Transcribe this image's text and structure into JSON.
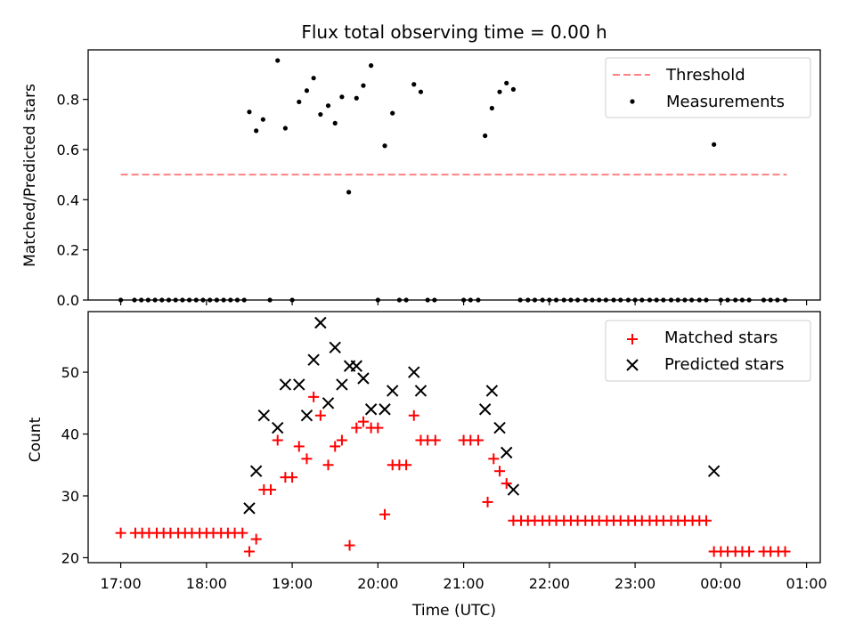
{
  "chart_data": [
    {
      "type": "scatter",
      "title": "Flux total observing time = 0.00 h",
      "ylabel": "Matched/Predicted stars",
      "xlabel": "",
      "xlim": [
        16.62,
        25.16
      ],
      "ylim": [
        0.0,
        0.9975
      ],
      "yticks": [
        0.0,
        0.2,
        0.4,
        0.6,
        0.8
      ],
      "ytick_labels": [
        "0.0",
        "0.2",
        "0.4",
        "0.6",
        "0.8"
      ],
      "legend": [
        "Threshold",
        "Measurements"
      ],
      "legend_position": "top-right",
      "threshold": {
        "name": "Threshold",
        "value": 0.5,
        "x": [
          17.0,
          24.77
        ],
        "color": "#ff8080"
      },
      "measurements": {
        "name": "Measurements",
        "color": "#000000",
        "x": [
          17.0,
          17.16,
          17.24,
          17.32,
          17.4,
          17.48,
          17.56,
          17.64,
          17.72,
          17.8,
          17.88,
          17.96,
          18.04,
          18.12,
          18.2,
          18.28,
          18.36,
          18.44,
          18.5,
          18.58,
          18.66,
          18.74,
          18.83,
          18.92,
          19.0,
          19.08,
          19.17,
          19.25,
          19.33,
          19.42,
          19.5,
          19.58,
          19.66,
          19.75,
          19.83,
          19.92,
          20.0,
          20.08,
          20.17,
          20.25,
          20.33,
          20.42,
          20.5,
          20.58,
          20.66,
          21.0,
          21.08,
          21.17,
          21.25,
          21.33,
          21.42,
          21.5,
          21.58,
          21.66,
          21.75,
          21.83,
          21.92,
          22.0,
          22.08,
          22.17,
          22.25,
          22.33,
          22.42,
          22.5,
          22.58,
          22.66,
          22.75,
          22.83,
          22.92,
          23.0,
          23.08,
          23.17,
          23.25,
          23.33,
          23.42,
          23.5,
          23.58,
          23.66,
          23.75,
          23.83,
          23.92,
          24.0,
          24.08,
          24.17,
          24.25,
          24.33,
          24.5,
          24.58,
          24.66,
          24.75
        ],
        "y": [
          0.0,
          0.0,
          0.0,
          0.0,
          0.0,
          0.0,
          0.0,
          0.0,
          0.0,
          0.0,
          0.0,
          0.0,
          0.0,
          0.0,
          0.0,
          0.0,
          0.0,
          0.0,
          0.75,
          0.675,
          0.72,
          0.0,
          0.955,
          0.685,
          0.0,
          0.79,
          0.835,
          0.885,
          0.74,
          0.775,
          0.705,
          0.81,
          0.43,
          0.805,
          0.855,
          0.935,
          0.0,
          0.615,
          0.745,
          0.0,
          0.0,
          0.86,
          0.83,
          0.0,
          0.0,
          0.0,
          0.0,
          0.0,
          0.655,
          0.765,
          0.83,
          0.865,
          0.84,
          0.0,
          0.0,
          0.0,
          0.0,
          0.0,
          0.0,
          0.0,
          0.0,
          0.0,
          0.0,
          0.0,
          0.0,
          0.0,
          0.0,
          0.0,
          0.0,
          0.0,
          0.0,
          0.0,
          0.0,
          0.0,
          0.0,
          0.0,
          0.0,
          0.0,
          0.0,
          0.0,
          0.62,
          0.0,
          0.0,
          0.0,
          0.0,
          0.0,
          0.0,
          0.0,
          0.0,
          0.0
        ]
      }
    },
    {
      "type": "scatter",
      "title": "",
      "ylabel": "Count",
      "xlabel": "Time (UTC)",
      "xlim": [
        16.62,
        25.16
      ],
      "ylim": [
        19.2,
        59.8
      ],
      "yticks": [
        20,
        30,
        40,
        50
      ],
      "ytick_labels": [
        "20",
        "30",
        "40",
        "50"
      ],
      "xticks": [
        17,
        18,
        19,
        20,
        21,
        22,
        23,
        24,
        25
      ],
      "xtick_labels": [
        "17:00",
        "18:00",
        "19:00",
        "20:00",
        "21:00",
        "22:00",
        "23:00",
        "00:00",
        "01:00"
      ],
      "legend": [
        "Matched stars",
        "Predicted stars"
      ],
      "legend_position": "top-right",
      "series": [
        {
          "name": "Matched stars",
          "marker": "+",
          "color": "#ff0000",
          "x": [
            17.0,
            17.17,
            17.25,
            17.33,
            17.42,
            17.5,
            17.58,
            17.67,
            17.75,
            17.83,
            17.92,
            18.0,
            18.08,
            18.17,
            18.25,
            18.33,
            18.42,
            18.5,
            18.58,
            18.67,
            18.75,
            18.83,
            18.92,
            19.0,
            19.08,
            19.17,
            19.25,
            19.33,
            19.42,
            19.5,
            19.58,
            19.67,
            19.75,
            19.83,
            19.92,
            20.0,
            20.08,
            20.17,
            20.25,
            20.33,
            20.42,
            20.5,
            20.58,
            20.67,
            21.0,
            21.08,
            21.17,
            21.28,
            21.35,
            21.42,
            21.5,
            21.58,
            21.67,
            21.75,
            21.83,
            21.92,
            22.0,
            22.08,
            22.17,
            22.25,
            22.33,
            22.42,
            22.5,
            22.58,
            22.67,
            22.75,
            22.83,
            22.92,
            23.0,
            23.08,
            23.17,
            23.25,
            23.33,
            23.42,
            23.5,
            23.58,
            23.67,
            23.75,
            23.83,
            23.92,
            24.0,
            24.08,
            24.17,
            24.25,
            24.33,
            24.5,
            24.58,
            24.67,
            24.75
          ],
          "y": [
            24,
            24,
            24,
            24,
            24,
            24,
            24,
            24,
            24,
            24,
            24,
            24,
            24,
            24,
            24,
            24,
            24,
            21,
            23,
            31,
            31,
            39,
            33,
            33,
            38,
            36,
            46,
            43,
            35,
            38,
            39,
            22,
            41,
            42,
            41,
            41,
            27,
            35,
            35,
            35,
            43,
            39,
            39,
            39,
            39,
            39,
            39,
            29,
            36,
            34,
            32,
            26,
            26,
            26,
            26,
            26,
            26,
            26,
            26,
            26,
            26,
            26,
            26,
            26,
            26,
            26,
            26,
            26,
            26,
            26,
            26,
            26,
            26,
            26,
            26,
            26,
            26,
            26,
            26,
            21,
            21,
            21,
            21,
            21,
            21,
            21,
            21,
            21,
            21
          ]
        },
        {
          "name": "Predicted stars",
          "marker": "x",
          "color": "#000000",
          "x": [
            18.5,
            18.58,
            18.67,
            18.83,
            18.92,
            19.08,
            19.17,
            19.25,
            19.33,
            19.42,
            19.5,
            19.58,
            19.67,
            19.75,
            19.83,
            19.92,
            20.08,
            20.17,
            20.42,
            20.5,
            21.25,
            21.33,
            21.42,
            21.5,
            21.58,
            23.92
          ],
          "y": [
            28,
            34,
            43,
            41,
            48,
            48,
            43,
            52,
            58,
            45,
            54,
            48,
            51,
            51,
            49,
            44,
            44,
            47,
            50,
            47,
            44,
            47,
            41,
            37,
            31,
            34
          ]
        }
      ]
    }
  ]
}
